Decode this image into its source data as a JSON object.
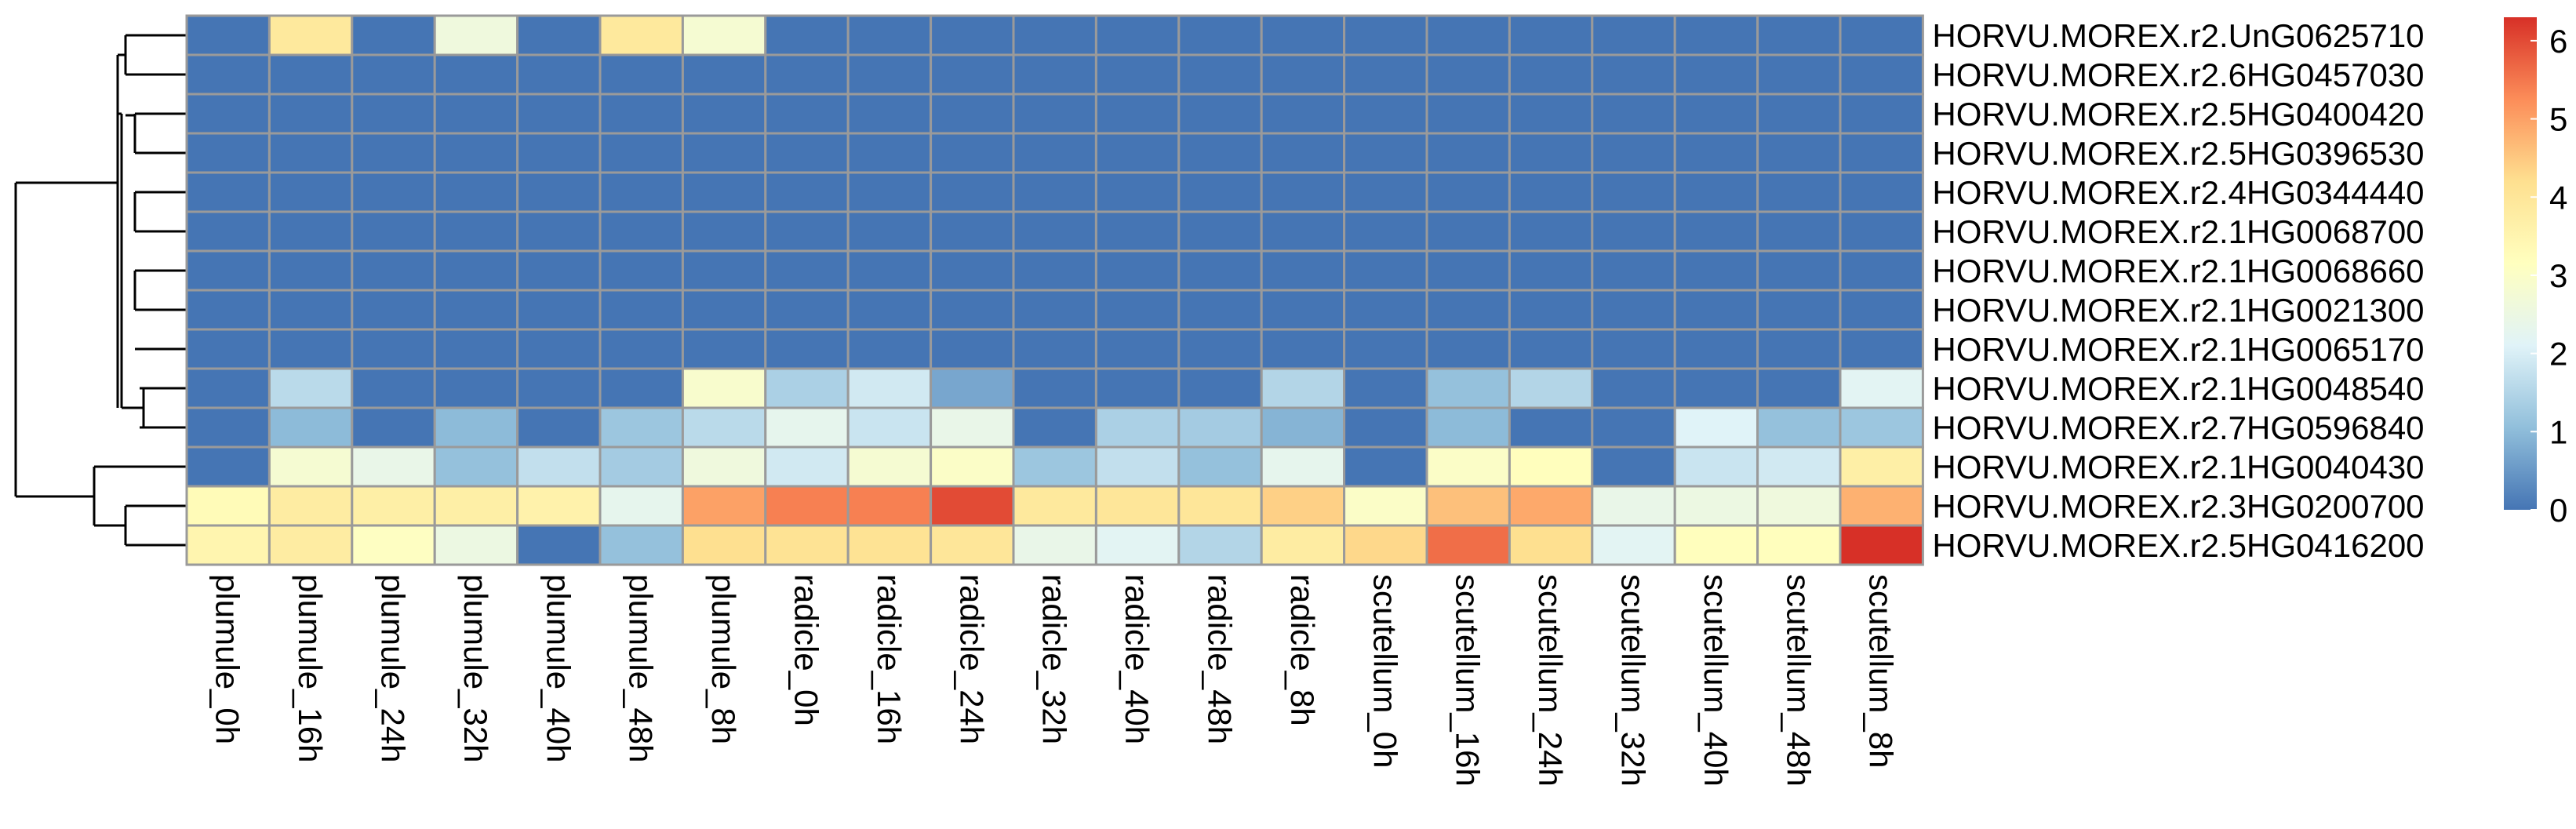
{
  "chart_data": {
    "type": "heatmap",
    "title": "",
    "xlabel": "",
    "ylabel": "",
    "columns": [
      "plumule_0h",
      "plumule_16h",
      "plumule_24h",
      "plumule_32h",
      "plumule_40h",
      "plumule_48h",
      "plumule_8h",
      "radicle_0h",
      "radicle_16h",
      "radicle_24h",
      "radicle_32h",
      "radicle_40h",
      "radicle_48h",
      "radicle_8h",
      "scutellum_0h",
      "scutellum_16h",
      "scutellum_24h",
      "scutellum_32h",
      "scutellum_40h",
      "scutellum_48h",
      "scutellum_8h"
    ],
    "rows": [
      "HORVU.MOREX.r2.UnG0625710",
      "HORVU.MOREX.r2.6HG0457030",
      "HORVU.MOREX.r2.5HG0400420",
      "HORVU.MOREX.r2.5HG0396530",
      "HORVU.MOREX.r2.4HG0344440",
      "HORVU.MOREX.r2.1HG0068700",
      "HORVU.MOREX.r2.1HG0068660",
      "HORVU.MOREX.r2.1HG0021300",
      "HORVU.MOREX.r2.1HG0065170",
      "HORVU.MOREX.r2.1HG0048540",
      "HORVU.MOREX.r2.7HG0596840",
      "HORVU.MOREX.r2.1HG0040430",
      "HORVU.MOREX.r2.3HG0200700",
      "HORVU.MOREX.r2.5HG0416200"
    ],
    "values": [
      [
        0,
        3.9,
        0,
        2.6,
        0,
        3.9,
        2.8,
        0,
        0,
        0,
        0,
        0,
        0,
        0,
        0,
        0,
        0,
        0,
        0,
        0,
        0
      ],
      [
        0,
        0,
        0,
        0,
        0,
        0,
        0,
        0,
        0,
        0,
        0,
        0,
        0,
        0,
        0,
        0,
        0,
        0,
        0,
        0,
        0
      ],
      [
        0,
        0,
        0,
        0,
        0,
        0,
        0,
        0,
        0,
        0,
        0,
        0,
        0,
        0,
        0,
        0,
        0,
        0,
        0,
        0,
        0
      ],
      [
        0,
        0,
        0,
        0,
        0,
        0,
        0,
        0,
        0,
        0,
        0,
        0,
        0,
        0,
        0,
        0,
        0,
        0,
        0,
        0,
        0
      ],
      [
        0,
        0,
        0,
        0,
        0,
        0,
        0,
        0,
        0,
        0,
        0,
        0,
        0,
        0,
        0,
        0,
        0,
        0,
        0,
        0,
        0
      ],
      [
        0,
        0,
        0,
        0,
        0,
        0,
        0,
        0,
        0,
        0,
        0,
        0,
        0,
        0,
        0,
        0,
        0,
        0,
        0,
        0,
        0
      ],
      [
        0,
        0,
        0,
        0,
        0,
        0,
        0,
        0,
        0,
        0,
        0,
        0,
        0,
        0,
        0,
        0,
        0,
        0,
        0,
        0,
        0
      ],
      [
        0,
        0,
        0,
        0,
        0,
        0,
        0,
        0,
        0,
        0,
        0,
        0,
        0,
        0,
        0,
        0,
        0,
        0,
        0,
        0,
        0
      ],
      [
        0,
        0,
        0,
        0,
        0,
        0,
        0,
        0,
        0,
        0,
        0,
        0,
        0,
        0,
        0,
        0,
        0,
        0,
        0,
        0,
        0
      ],
      [
        0,
        1.6,
        0,
        0,
        0,
        0,
        2.9,
        1.4,
        1.9,
        0.7,
        0,
        0,
        0,
        1.5,
        0,
        1.1,
        1.5,
        0,
        0,
        0,
        2.2
      ],
      [
        0,
        1.0,
        0,
        1.0,
        0,
        1.2,
        1.6,
        2.3,
        1.8,
        2.4,
        0,
        1.4,
        1.3,
        0.9,
        0,
        1.0,
        0,
        0,
        2.1,
        1.1,
        1.2
      ],
      [
        0,
        2.8,
        2.4,
        1.1,
        1.7,
        1.3,
        2.6,
        1.9,
        2.8,
        3.0,
        1.2,
        1.7,
        1.1,
        2.3,
        0,
        3.0,
        3.2,
        0,
        1.8,
        1.9,
        3.7
      ],
      [
        3.3,
        3.8,
        3.7,
        3.7,
        3.6,
        2.3,
        5.0,
        5.4,
        5.4,
        6.0,
        3.9,
        4.0,
        4.0,
        4.4,
        3.0,
        4.6,
        4.9,
        2.4,
        2.5,
        2.6,
        4.8
      ],
      [
        3.5,
        3.8,
        3.1,
        2.5,
        0,
        1.1,
        4.2,
        4.1,
        4.1,
        4.0,
        2.4,
        2.2,
        1.5,
        3.8,
        4.3,
        5.6,
        4.2,
        2.2,
        3.2,
        3.2,
        6.5
      ]
    ],
    "color_scale": {
      "min": 0,
      "max": 6.3,
      "ticks": [
        0,
        1,
        2,
        3,
        4,
        5,
        6
      ],
      "stops": [
        "#4575b4",
        "#91bfdb",
        "#e0f3f8",
        "#ffffbf",
        "#fee090",
        "#fc8d59",
        "#d73027"
      ]
    },
    "legend_position": "right",
    "grid": true,
    "row_dendrogram": true
  }
}
